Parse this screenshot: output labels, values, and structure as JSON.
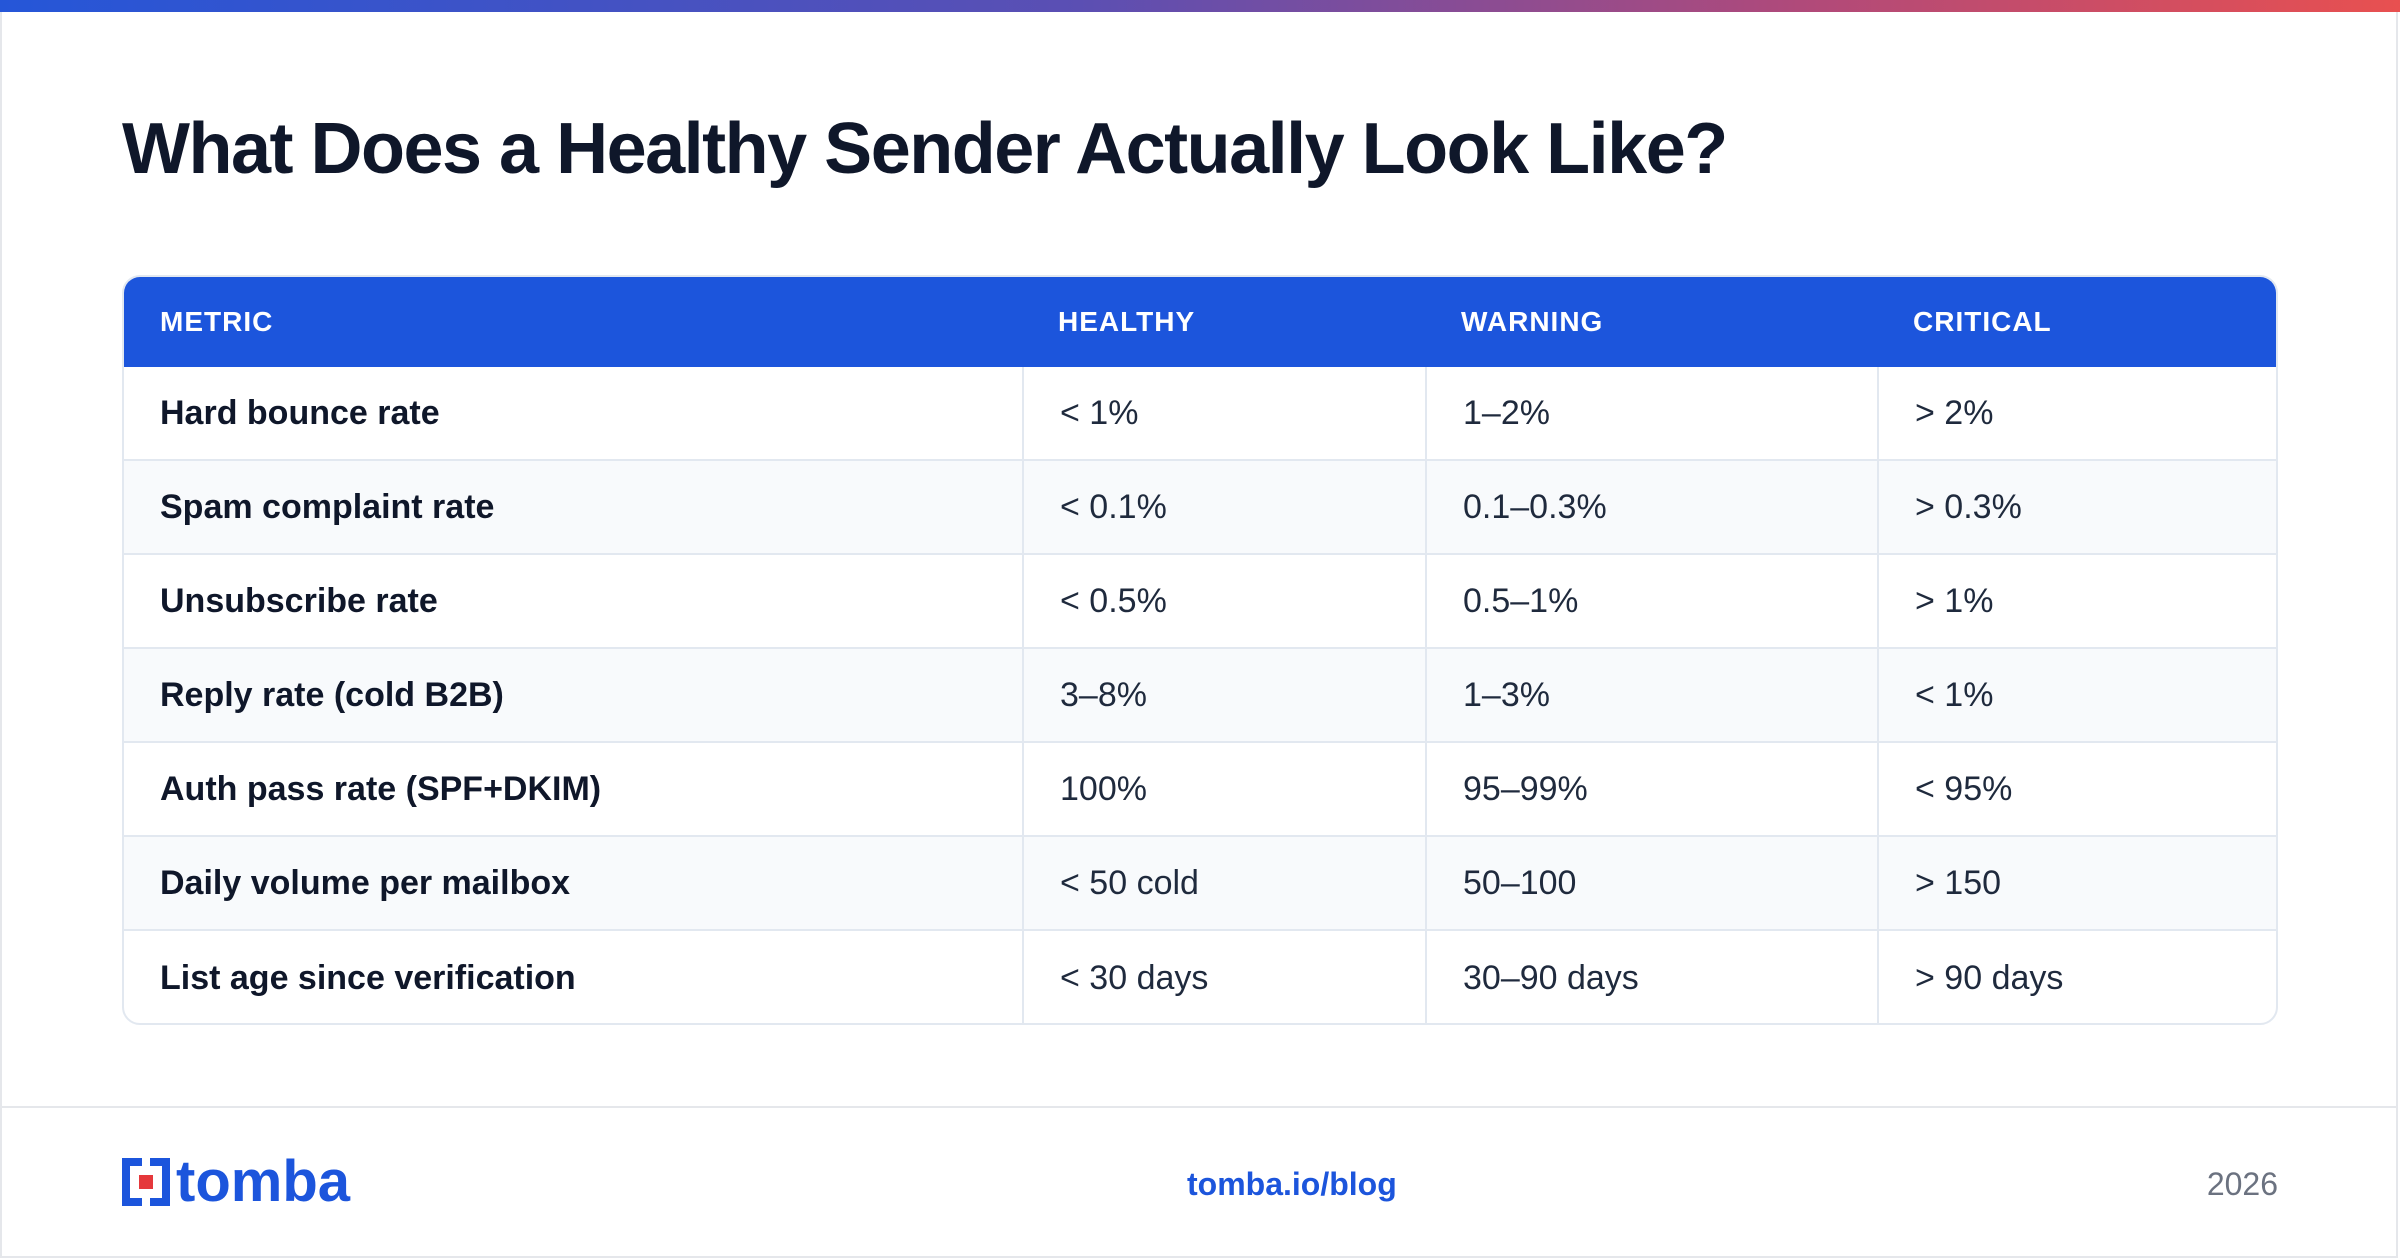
{
  "title": "What Does a Healthy Sender Actually Look Like?",
  "table": {
    "headers": [
      "METRIC",
      "HEALTHY",
      "WARNING",
      "CRITICAL"
    ],
    "rows": [
      [
        "Hard bounce rate",
        "< 1%",
        "1–2%",
        "> 2%"
      ],
      [
        "Spam complaint rate",
        "< 0.1%",
        "0.1–0.3%",
        "> 0.3%"
      ],
      [
        "Unsubscribe rate",
        "< 0.5%",
        "0.5–1%",
        "> 1%"
      ],
      [
        "Reply rate (cold B2B)",
        "3–8%",
        "1–3%",
        "< 1%"
      ],
      [
        "Auth pass rate (SPF+DKIM)",
        "100%",
        "95–99%",
        "< 95%"
      ],
      [
        "Daily volume per mailbox",
        "< 50 cold",
        "50–100",
        "> 150"
      ],
      [
        "List age since verification",
        "< 30 days",
        "30–90 days",
        "> 90 days"
      ]
    ]
  },
  "footer": {
    "logo_text": "tomba",
    "link": "tomba.io/blog",
    "year": "2026"
  },
  "colors": {
    "brand_blue": "#1c55dc",
    "logo_accent_red": "#e5383b"
  },
  "icons": {
    "logo": "tomba-logo-icon"
  }
}
